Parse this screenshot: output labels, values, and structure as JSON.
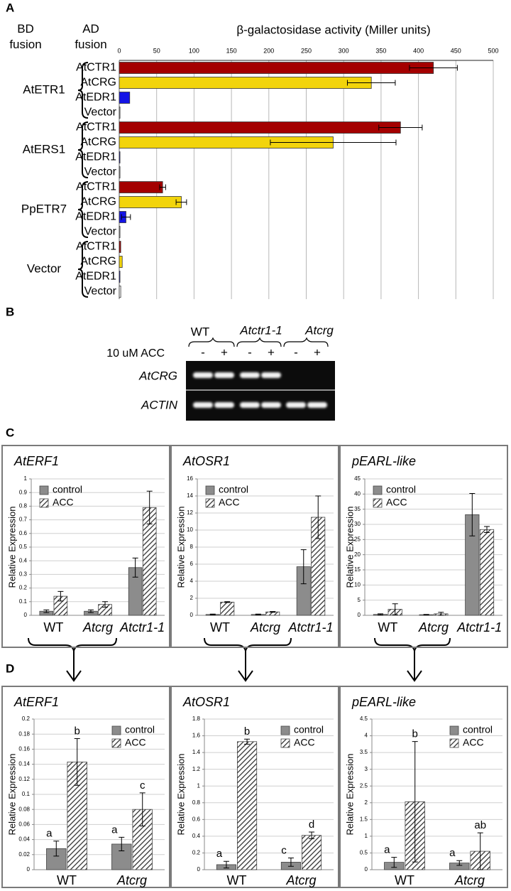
{
  "panel_labels": [
    "A",
    "B",
    "C",
    "D"
  ],
  "gel": {
    "groups": [
      "WT",
      "Atctr1-1",
      "Atcrg"
    ],
    "treatment": "10 uM ACC",
    "lanes": [
      "-",
      "+",
      "-",
      "+",
      "-",
      "+"
    ],
    "genes": [
      "AtCRG",
      "ACTIN"
    ]
  },
  "chart_data": [
    {
      "type": "barh",
      "x_label": "β-galactosidase activity (Miller units)",
      "group_header": "BD fusion",
      "row_header": "AD fusion",
      "categories": [
        "AtETR1",
        "AtERS1",
        "PpETR7",
        "Vector"
      ],
      "series": [
        {
          "name": "AtCTR1",
          "color": "#a40000",
          "values": [
            420,
            376,
            58,
            2
          ],
          "errors": [
            32,
            29,
            4,
            null
          ]
        },
        {
          "name": "AtCRG",
          "color": "#f2d40b",
          "values": [
            337,
            286,
            83,
            4
          ],
          "errors": [
            32,
            84,
            7,
            null
          ]
        },
        {
          "name": "AtEDR1",
          "color": "#1414e6",
          "values": [
            14,
            1,
            9,
            1
          ],
          "errors": [
            null,
            null,
            6,
            null
          ]
        },
        {
          "name": "Vector",
          "color": "#ffffff",
          "values": [
            1,
            1,
            1,
            2
          ],
          "errors": [
            null,
            null,
            null,
            null
          ]
        }
      ],
      "xlim": [
        0,
        500
      ],
      "xticks": [
        0,
        50,
        100,
        150,
        200,
        250,
        300,
        350,
        400,
        450,
        500
      ],
      "grid": true
    },
    {
      "type": "bar",
      "title": "AtERF1",
      "y_label": "Relative Expression",
      "categories": [
        "WT",
        "Atcrg",
        "Atctr1-1"
      ],
      "series": [
        {
          "name": "control",
          "color": "#8c8c8c",
          "values": [
            0.03,
            0.03,
            0.35
          ],
          "errors": [
            0.01,
            0.01,
            0.07
          ]
        },
        {
          "name": "ACC",
          "color": "#333333",
          "pattern": "hatch",
          "values": [
            0.14,
            0.08,
            0.79
          ],
          "errors": [
            0.035,
            0.02,
            0.12
          ]
        }
      ],
      "ylim": [
        0,
        1
      ],
      "yticks": [
        0,
        0.1,
        0.2,
        0.3,
        0.4,
        0.5,
        0.6,
        0.7,
        0.8,
        0.9,
        1
      ],
      "grid": true,
      "legend": "upper left"
    },
    {
      "type": "bar",
      "title": "AtOSR1",
      "y_label": "Relative Expression",
      "categories": [
        "WT",
        "Atcrg",
        "Atctr1-1"
      ],
      "series": [
        {
          "name": "control",
          "color": "#8c8c8c",
          "values": [
            0.1,
            0.1,
            5.7
          ],
          "errors": [
            0.05,
            0.05,
            2
          ]
        },
        {
          "name": "ACC",
          "color": "#333333",
          "pattern": "hatch",
          "values": [
            1.55,
            0.4,
            11.5
          ],
          "errors": [
            0.05,
            0.05,
            2.5
          ]
        }
      ],
      "ylim": [
        0,
        16
      ],
      "yticks": [
        0,
        2,
        4,
        6,
        8,
        10,
        12,
        14,
        16
      ],
      "grid": true,
      "legend": "upper left"
    },
    {
      "type": "bar",
      "title": "pEARL-like",
      "y_label": "Relative Expression",
      "categories": [
        "WT",
        "Atcrg",
        "Atctr1-1"
      ],
      "series": [
        {
          "name": "control",
          "color": "#8c8c8c",
          "values": [
            0.3,
            0.2,
            33.2
          ],
          "errors": [
            0.2,
            0.1,
            7
          ]
        },
        {
          "name": "ACC",
          "color": "#333333",
          "pattern": "hatch",
          "values": [
            2,
            0.5,
            28.3
          ],
          "errors": [
            1.8,
            0.5,
            1
          ]
        }
      ],
      "ylim": [
        0,
        45
      ],
      "yticks": [
        0,
        5,
        10,
        15,
        20,
        25,
        30,
        35,
        40,
        45
      ],
      "grid": true,
      "legend": "upper left"
    },
    {
      "type": "bar",
      "title": "AtERF1",
      "y_label": "Relative Expression",
      "categories": [
        "WT",
        "Atcrg"
      ],
      "series": [
        {
          "name": "control",
          "color": "#8c8c8c",
          "values": [
            0.028,
            0.034
          ],
          "errors": [
            0.01,
            0.009
          ],
          "letters": [
            "a",
            "a"
          ]
        },
        {
          "name": "ACC",
          "color": "#333333",
          "pattern": "hatch",
          "values": [
            0.143,
            0.08
          ],
          "errors": [
            0.031,
            0.022
          ],
          "letters": [
            "b",
            "c"
          ]
        }
      ],
      "ylim": [
        0,
        0.2
      ],
      "yticks": [
        0,
        0.02,
        0.04,
        0.06,
        0.08,
        0.1,
        0.12,
        0.14,
        0.16,
        0.18,
        0.2
      ],
      "grid": true,
      "legend": "upper right"
    },
    {
      "type": "bar",
      "title": "AtOSR1",
      "y_label": "Relative Expression",
      "categories": [
        "WT",
        "Atcrg"
      ],
      "series": [
        {
          "name": "control",
          "color": "#8c8c8c",
          "values": [
            0.06,
            0.09
          ],
          "errors": [
            0.04,
            0.05
          ],
          "letters": [
            "a",
            "c"
          ]
        },
        {
          "name": "ACC",
          "color": "#333333",
          "pattern": "hatch",
          "values": [
            1.53,
            0.41
          ],
          "errors": [
            0.03,
            0.04
          ],
          "letters": [
            "b",
            "d"
          ]
        }
      ],
      "ylim": [
        0,
        1.8
      ],
      "yticks": [
        0,
        0.2,
        0.4,
        0.6,
        0.8,
        1,
        1.2,
        1.4,
        1.6,
        1.8
      ],
      "grid": true,
      "legend": "upper right"
    },
    {
      "type": "bar",
      "title": "pEARL-like",
      "y_label": "Relative Expression",
      "categories": [
        "WT",
        "Atcrg"
      ],
      "series": [
        {
          "name": "control",
          "color": "#8c8c8c",
          "values": [
            0.22,
            0.2
          ],
          "errors": [
            0.15,
            0.07
          ],
          "letters": [
            "a",
            "a"
          ]
        },
        {
          "name": "ACC",
          "color": "#333333",
          "pattern": "hatch",
          "values": [
            2.03,
            0.55
          ],
          "errors": [
            1.8,
            0.55
          ],
          "letters": [
            "b",
            "ab"
          ]
        }
      ],
      "ylim": [
        0,
        4.5
      ],
      "yticks": [
        0,
        0.5,
        1,
        1.5,
        2,
        2.5,
        3,
        3.5,
        4,
        4.5
      ],
      "grid": true,
      "legend": "upper right"
    }
  ]
}
